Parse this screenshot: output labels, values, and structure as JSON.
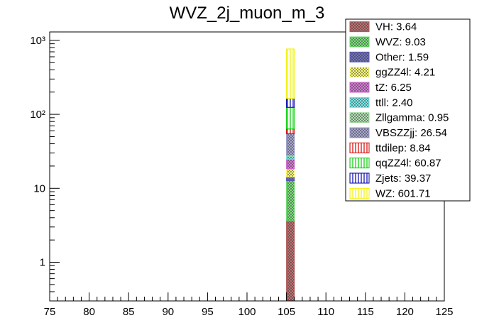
{
  "chart_data": {
    "type": "bar",
    "stacked": true,
    "title": "WVZ_2j_muon_m_3",
    "xlabel": "",
    "ylabel": "",
    "x_range": [
      75,
      125
    ],
    "y_scale": "log",
    "y_range": [
      0.3,
      1300
    ],
    "x_ticks_major": [
      75,
      80,
      85,
      90,
      95,
      100,
      105,
      110,
      115,
      120,
      125
    ],
    "y_ticks_labels": [
      "1",
      "10",
      "10²",
      "10³"
    ],
    "y_ticks_values": [
      1,
      10,
      100,
      1000
    ],
    "bin": [
      105,
      106
    ],
    "legend_position": "top-right",
    "series": [
      {
        "name": "VH",
        "value": 3.64,
        "label": "VH: 3.64",
        "color": "#b35959",
        "pattern": "diag-cross"
      },
      {
        "name": "WVZ",
        "value": 9.03,
        "label": "WVZ: 9.03",
        "color": "#66d966",
        "pattern": "diag-cross"
      },
      {
        "name": "Other",
        "value": 1.59,
        "label": "Other: 1.59",
        "color": "#5959b3",
        "pattern": "diag-cross"
      },
      {
        "name": "ggZZ4l",
        "value": 4.21,
        "label": "ggZZ4l: 4.21",
        "color": "#ffff66",
        "pattern": "diag-cross"
      },
      {
        "name": "tZ",
        "value": 6.25,
        "label": "tZ: 6.25",
        "color": "#cc66cc",
        "pattern": "diag-cross"
      },
      {
        "name": "ttll",
        "value": 2.4,
        "label": "ttll: 2.40",
        "color": "#66e6e6",
        "pattern": "diag-cross"
      },
      {
        "name": "Zllgamma",
        "value": 0.95,
        "label": "Zllgamma: 0.95",
        "color": "#a3d9a3",
        "pattern": "diag-cross"
      },
      {
        "name": "VBSZZjj",
        "value": 26.54,
        "label": "VBSZZjj: 26.54",
        "color": "#9999c8",
        "pattern": "diag-cross"
      },
      {
        "name": "ttdilep",
        "value": 8.84,
        "label": "ttdilep: 8.84",
        "color": "#d40000",
        "pattern": "vertical"
      },
      {
        "name": "qqZZ4l",
        "value": 60.87,
        "label": "qqZZ4l: 60.87",
        "color": "#00cc00",
        "pattern": "vertical"
      },
      {
        "name": "Zjets",
        "value": 39.37,
        "label": "Zjets: 39.37",
        "color": "#0000aa",
        "pattern": "vertical"
      },
      {
        "name": "WZ",
        "value": 601.71,
        "label": "WZ: 601.71",
        "color": "#f2f200",
        "pattern": "vertical"
      }
    ]
  }
}
